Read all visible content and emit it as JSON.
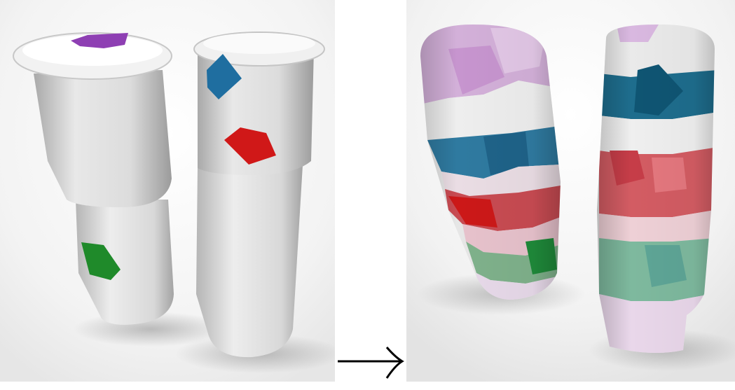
{
  "figure": {
    "left_panel": {
      "description_name": "input-segments",
      "objects": 2,
      "seed_patches": [
        {
          "name": "purple-seed",
          "color": "#8e3fb3"
        },
        {
          "name": "blue-seed",
          "color": "#1f6ea0"
        },
        {
          "name": "red-seed",
          "color": "#d01818"
        },
        {
          "name": "green-seed",
          "color": "#1f8a2a"
        }
      ]
    },
    "arrow": {
      "symbol": "→"
    },
    "right_panel": {
      "description_name": "output-segmentation",
      "objects": 2,
      "region_colors": [
        "#d7b6de",
        "#1d6f92",
        "#c94a52",
        "#6fb08a",
        "#e9d4e6"
      ]
    },
    "colors": {
      "background": "#ffffff",
      "surface": "#e6e6e6",
      "shadow": "#cfcfcf"
    }
  }
}
